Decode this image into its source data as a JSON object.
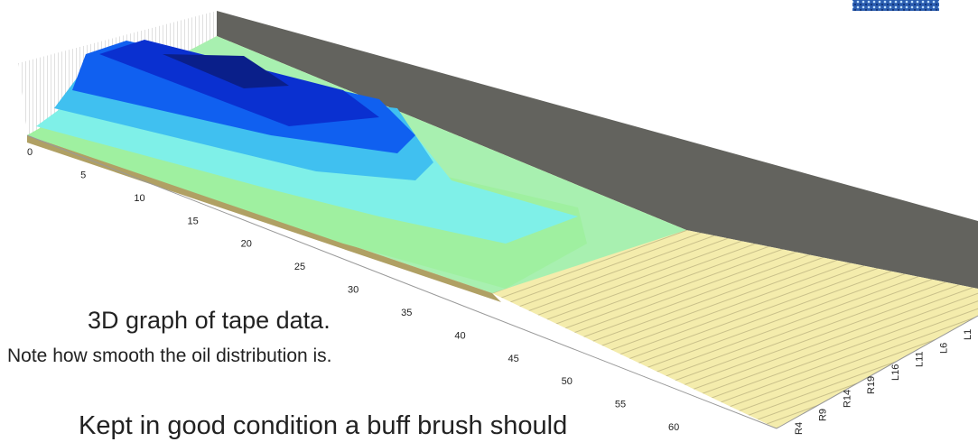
{
  "graph": {
    "depth_ticks": [
      0,
      5,
      10,
      15,
      20,
      25,
      30,
      35,
      40,
      45,
      50,
      55,
      60
    ],
    "lane_ticks": [
      "R4",
      "R9",
      "R14",
      "R19",
      "L16",
      "L11",
      "L6",
      "L1"
    ]
  },
  "caption": {
    "title": "3D graph of tape data.",
    "note": "Note how smooth the oil distribution is.",
    "body": "Kept in good condition a buff brush should"
  }
}
